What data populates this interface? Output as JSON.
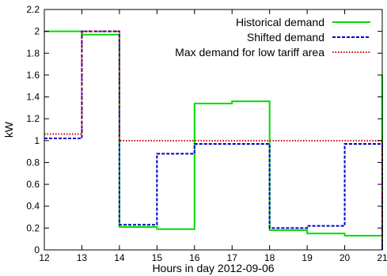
{
  "chart_data": {
    "type": "line",
    "step": true,
    "xlabel": "Hours in day 2012-09-06",
    "ylabel": "kW",
    "xlim": [
      12,
      21
    ],
    "ylim": [
      0,
      2.2
    ],
    "x_ticks": [
      12,
      13,
      14,
      15,
      16,
      17,
      18,
      19,
      20,
      21
    ],
    "y_ticks": [
      0,
      0.2,
      0.4,
      0.6,
      0.8,
      1,
      1.2,
      1.4,
      1.6,
      1.8,
      2,
      2.2
    ],
    "x_tick_labels": [
      "12",
      "13",
      "14",
      "15",
      "16",
      "17",
      "18",
      "19",
      "20",
      "21"
    ],
    "y_tick_labels": [
      "0",
      "0.2",
      "0.4",
      "0.6",
      "0.8",
      "1",
      "1.2",
      "1.4",
      "1.6",
      "1.8",
      "2",
      "2.2"
    ],
    "grid": false,
    "legend_position": "top-right",
    "series": [
      {
        "name": "Historical demand",
        "color": "#00dd00",
        "style": "solid",
        "x": [
          12,
          13,
          14,
          15,
          16,
          17,
          18,
          19,
          20,
          21
        ],
        "values": [
          2.0,
          1.97,
          0.21,
          0.19,
          1.34,
          1.36,
          0.18,
          0.15,
          0.13,
          1.6
        ]
      },
      {
        "name": "Shifted demand",
        "color": "#0000cc",
        "style": "dashed",
        "x": [
          12,
          13,
          14,
          15,
          16,
          17,
          18,
          19,
          20,
          21
        ],
        "values": [
          1.02,
          2.0,
          0.23,
          0.88,
          0.97,
          0.97,
          0.2,
          0.22,
          0.97,
          0.97
        ]
      },
      {
        "name": "Max demand for low tariff area",
        "color": "#cc0000",
        "style": "dotted",
        "x": [
          12,
          13,
          14,
          15,
          16,
          17,
          18,
          19,
          20,
          21
        ],
        "values": [
          1.06,
          2.0,
          1.0,
          1.0,
          1.0,
          1.0,
          1.0,
          1.0,
          1.0,
          1.0
        ]
      }
    ]
  }
}
